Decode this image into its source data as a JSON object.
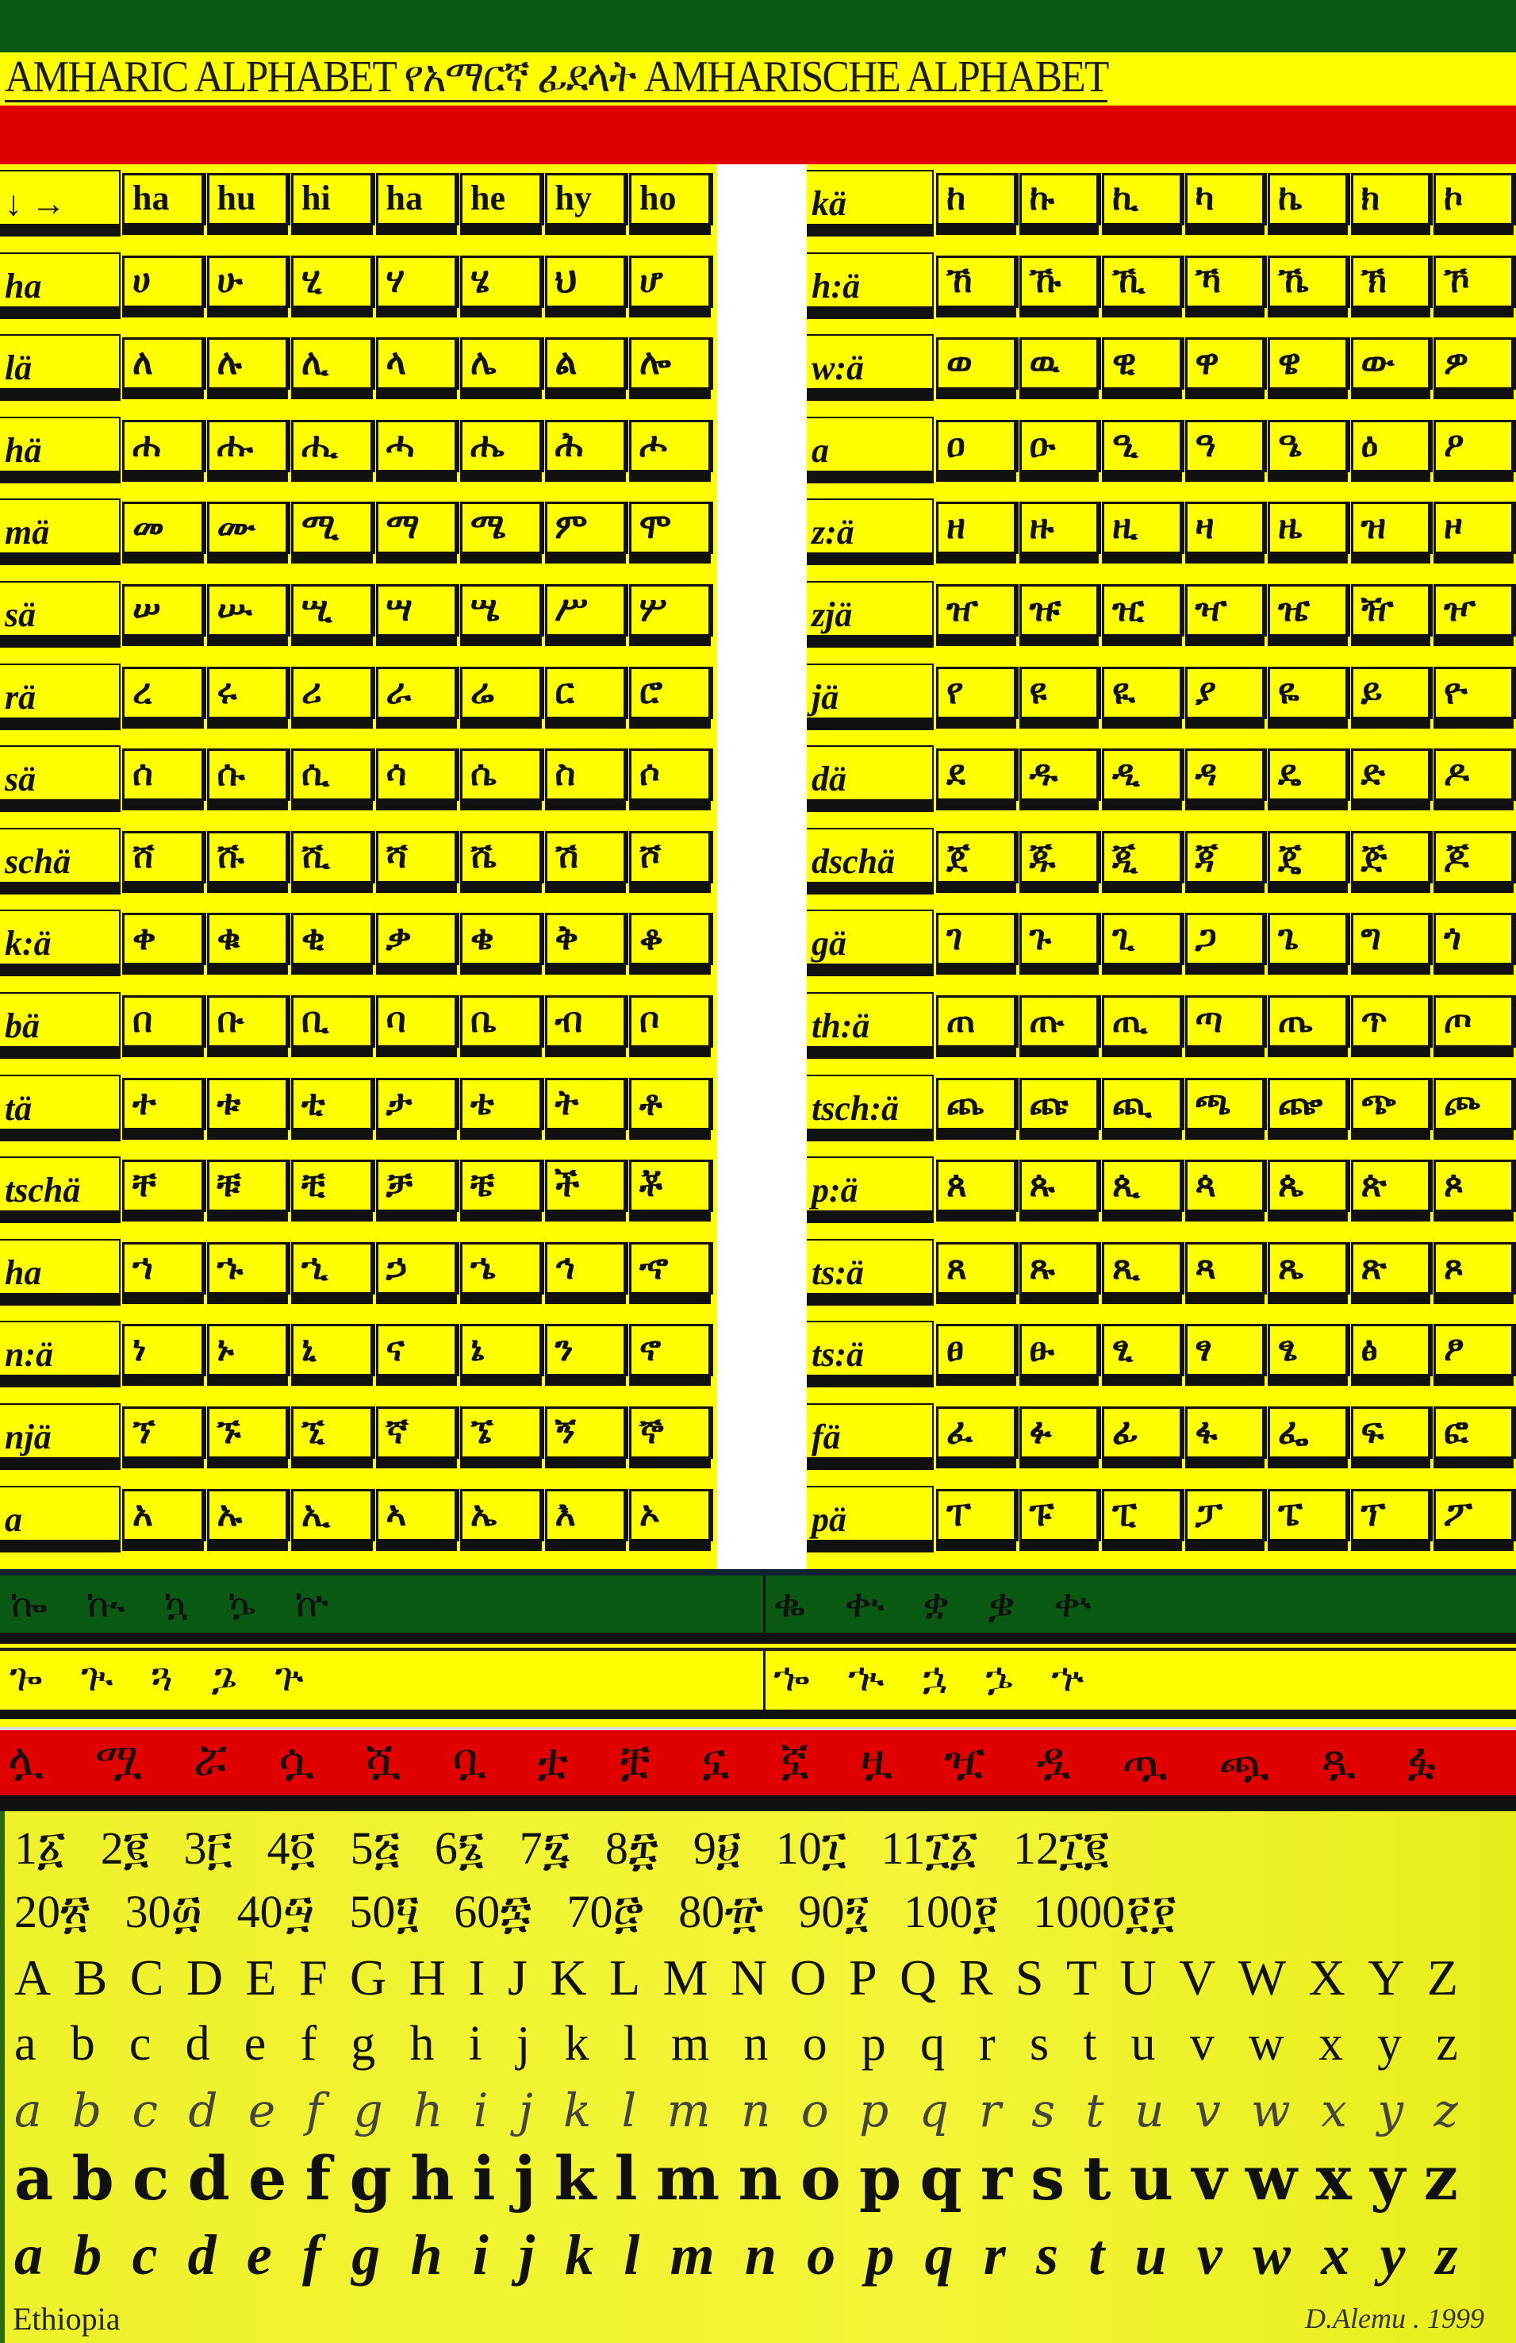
{
  "title": {
    "text": "AMHARIC ALPHABET የአማርኛ ፊደላት AMHARISCHE ALPHABET"
  },
  "colors": {
    "green": "#0b5a14",
    "yellow": "#ffff00",
    "red": "#e00000"
  },
  "header": {
    "corner": "↓ →",
    "vowels": [
      "ha",
      "hu",
      "hi",
      "ha",
      "he",
      "hy",
      "ho"
    ]
  },
  "left_rows": [
    {
      "label": "ha",
      "chars": [
        "ሀ",
        "ሁ",
        "ሂ",
        "ሃ",
        "ሄ",
        "ህ",
        "ሆ"
      ]
    },
    {
      "label": "lä",
      "chars": [
        "ለ",
        "ሉ",
        "ሊ",
        "ላ",
        "ሌ",
        "ል",
        "ሎ"
      ]
    },
    {
      "label": "hä",
      "chars": [
        "ሐ",
        "ሑ",
        "ሒ",
        "ሓ",
        "ሔ",
        "ሕ",
        "ሖ"
      ]
    },
    {
      "label": "mä",
      "chars": [
        "መ",
        "ሙ",
        "ሚ",
        "ማ",
        "ሜ",
        "ም",
        "ሞ"
      ]
    },
    {
      "label": "sä",
      "chars": [
        "ሠ",
        "ሡ",
        "ሢ",
        "ሣ",
        "ሤ",
        "ሥ",
        "ሦ"
      ]
    },
    {
      "label": "rä",
      "chars": [
        "ረ",
        "ሩ",
        "ሪ",
        "ራ",
        "ሬ",
        "ር",
        "ሮ"
      ]
    },
    {
      "label": "sä",
      "chars": [
        "ሰ",
        "ሱ",
        "ሲ",
        "ሳ",
        "ሴ",
        "ስ",
        "ሶ"
      ]
    },
    {
      "label": "schä",
      "chars": [
        "ሸ",
        "ሹ",
        "ሺ",
        "ሻ",
        "ሼ",
        "ሽ",
        "ሾ"
      ]
    },
    {
      "label": "k:ä",
      "chars": [
        "ቀ",
        "ቁ",
        "ቂ",
        "ቃ",
        "ቄ",
        "ቅ",
        "ቆ"
      ]
    },
    {
      "label": "bä",
      "chars": [
        "በ",
        "ቡ",
        "ቢ",
        "ባ",
        "ቤ",
        "ብ",
        "ቦ"
      ]
    },
    {
      "label": "tä",
      "chars": [
        "ተ",
        "ቱ",
        "ቲ",
        "ታ",
        "ቴ",
        "ት",
        "ቶ"
      ]
    },
    {
      "label": "tschä",
      "chars": [
        "ቸ",
        "ቹ",
        "ቺ",
        "ቻ",
        "ቼ",
        "ች",
        "ቾ"
      ]
    },
    {
      "label": "ha",
      "chars": [
        "ኀ",
        "ኁ",
        "ኂ",
        "ኃ",
        "ኄ",
        "ኅ",
        "ኆ"
      ]
    },
    {
      "label": "n:ä",
      "chars": [
        "ነ",
        "ኑ",
        "ኒ",
        "ና",
        "ኔ",
        "ን",
        "ኖ"
      ]
    },
    {
      "label": "njä",
      "chars": [
        "ኘ",
        "ኙ",
        "ኚ",
        "ኛ",
        "ኜ",
        "ኝ",
        "ኞ"
      ]
    },
    {
      "label": "a",
      "chars": [
        "አ",
        "ኡ",
        "ኢ",
        "ኣ",
        "ኤ",
        "እ",
        "ኦ"
      ]
    }
  ],
  "right_rows": [
    {
      "label": "kä",
      "chars": [
        "ከ",
        "ኩ",
        "ኪ",
        "ካ",
        "ኬ",
        "ክ",
        "ኮ"
      ]
    },
    {
      "label": "h:ä",
      "chars": [
        "ኸ",
        "ኹ",
        "ኺ",
        "ኻ",
        "ኼ",
        "ኽ",
        "ኾ"
      ]
    },
    {
      "label": "w:ä",
      "chars": [
        "ወ",
        "ዉ",
        "ዊ",
        "ዋ",
        "ዌ",
        "ው",
        "ዎ"
      ]
    },
    {
      "label": "a",
      "chars": [
        "ዐ",
        "ዑ",
        "ዒ",
        "ዓ",
        "ዔ",
        "ዕ",
        "ዖ"
      ]
    },
    {
      "label": "z:ä",
      "chars": [
        "ዘ",
        "ዙ",
        "ዚ",
        "ዛ",
        "ዜ",
        "ዝ",
        "ዞ"
      ]
    },
    {
      "label": "zjä",
      "chars": [
        "ዠ",
        "ዡ",
        "ዢ",
        "ዣ",
        "ዤ",
        "ዥ",
        "ዦ"
      ]
    },
    {
      "label": "jä",
      "chars": [
        "የ",
        "ዩ",
        "ዪ",
        "ያ",
        "ዬ",
        "ይ",
        "ዮ"
      ]
    },
    {
      "label": "dä",
      "chars": [
        "ደ",
        "ዱ",
        "ዲ",
        "ዳ",
        "ዴ",
        "ድ",
        "ዶ"
      ]
    },
    {
      "label": "dschä",
      "chars": [
        "ጀ",
        "ጁ",
        "ጂ",
        "ጃ",
        "ጄ",
        "ጅ",
        "ጆ"
      ]
    },
    {
      "label": "gä",
      "chars": [
        "ገ",
        "ጉ",
        "ጊ",
        "ጋ",
        "ጌ",
        "ግ",
        "ጎ"
      ]
    },
    {
      "label": "th:ä",
      "chars": [
        "ጠ",
        "ጡ",
        "ጢ",
        "ጣ",
        "ጤ",
        "ጥ",
        "ጦ"
      ]
    },
    {
      "label": "tsch:ä",
      "chars": [
        "ጨ",
        "ጩ",
        "ጪ",
        "ጫ",
        "ጬ",
        "ጭ",
        "ጮ"
      ]
    },
    {
      "label": "p:ä",
      "chars": [
        "ጰ",
        "ጱ",
        "ጲ",
        "ጳ",
        "ጴ",
        "ጵ",
        "ጶ"
      ]
    },
    {
      "label": "ts:ä",
      "chars": [
        "ጸ",
        "ጹ",
        "ጺ",
        "ጻ",
        "ጼ",
        "ጽ",
        "ጾ"
      ]
    },
    {
      "label": "ts:ä",
      "chars": [
        "ፀ",
        "ፁ",
        "ፂ",
        "ፃ",
        "ፄ",
        "ፅ",
        "ፆ"
      ]
    },
    {
      "label": "fä",
      "chars": [
        "ፈ",
        "ፉ",
        "ፊ",
        "ፋ",
        "ፌ",
        "ፍ",
        "ፎ"
      ]
    },
    {
      "label": "pä",
      "chars": [
        "ፐ",
        "ፑ",
        "ፒ",
        "ፓ",
        "ፔ",
        "ፕ",
        "ፖ"
      ]
    }
  ],
  "labialized": {
    "green_left": "ኰ ኲ ኳ ኴ ኵ",
    "green_right": "ቈ ቊ ቋ ቌ ቍ",
    "yellow_left": "ጐ ጒ ጓ ጔ ጕ",
    "yellow_right": "ኈ ኊ ኋ ኌ ኍ"
  },
  "red_band": [
    "ሏ",
    "ሟ",
    "ሯ",
    "ሷ",
    "ሿ",
    "ቧ",
    "ቷ",
    "ቿ",
    "ኗ",
    "ኟ",
    "ዟ",
    "ዧ",
    "ዷ",
    "ጧ",
    "ጯ",
    "ጿ",
    "ፏ"
  ],
  "numerals_row1": [
    {
      "n": "1",
      "g": "፩"
    },
    {
      "n": "2",
      "g": "፪"
    },
    {
      "n": "3",
      "g": "፫"
    },
    {
      "n": "4",
      "g": "፬"
    },
    {
      "n": "5",
      "g": "፭"
    },
    {
      "n": "6",
      "g": "፮"
    },
    {
      "n": "7",
      "g": "፯"
    },
    {
      "n": "8",
      "g": "፰"
    },
    {
      "n": "9",
      "g": "፱"
    },
    {
      "n": "10",
      "g": "፲"
    },
    {
      "n": "11",
      "g": "፲፩"
    },
    {
      "n": "12",
      "g": "፲፪"
    }
  ],
  "numerals_row2": [
    {
      "n": "20",
      "g": "፳"
    },
    {
      "n": "30",
      "g": "፴"
    },
    {
      "n": "40",
      "g": "፵"
    },
    {
      "n": "50",
      "g": "፶"
    },
    {
      "n": "60",
      "g": "፷"
    },
    {
      "n": "70",
      "g": "፸"
    },
    {
      "n": "80",
      "g": "፹"
    },
    {
      "n": "90",
      "g": "፺"
    },
    {
      "n": "100",
      "g": "፻"
    },
    {
      "n": "1000",
      "g": "፻፻"
    }
  ],
  "latin_upper": "ABCDEFGHIJKLMNOPQRSTUVWXYZ",
  "latin_lower": "abcdefghijklmnopqrstuvwxyz",
  "latin_italic": "abcdefghijklmnopqrstuvwxyz",
  "latin_blackletter": "abcdefghijklmnopqrstuvwxyz",
  "latin_script": "abcdefghijklmnopqrstuvwxyz",
  "footer": {
    "left": "Ethiopia",
    "right": "D.Alemu . 1999"
  }
}
